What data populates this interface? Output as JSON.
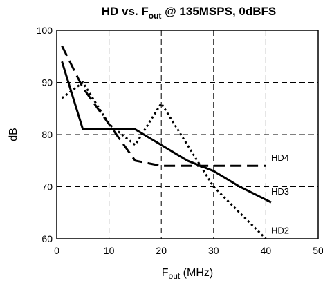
{
  "chart_data": {
    "type": "line",
    "title": {
      "main": "HD vs. F",
      "sub": "out",
      "tail": " @ 135MSPS, 0dBFS"
    },
    "xlabel": {
      "main": "F",
      "sub": "out",
      "tail": " (MHz)"
    },
    "ylabel": "dB",
    "xlim": [
      0,
      50
    ],
    "ylim": [
      60,
      100
    ],
    "xticks": [
      "0",
      "10",
      "20",
      "30",
      "40",
      "50"
    ],
    "yticks": [
      "60",
      "70",
      "80",
      "90",
      "100"
    ],
    "grid": true,
    "series": [
      {
        "name": "HD2",
        "style": "dotted",
        "color": "#000000",
        "points": [
          [
            1,
            87
          ],
          [
            5,
            90
          ],
          [
            10,
            82
          ],
          [
            15,
            78
          ],
          [
            20,
            86
          ],
          [
            25,
            78
          ],
          [
            30,
            70
          ],
          [
            35,
            65
          ],
          [
            40,
            60
          ]
        ]
      },
      {
        "name": "HD3",
        "style": "solid",
        "color": "#000000",
        "points": [
          [
            1,
            94
          ],
          [
            5,
            81
          ],
          [
            10,
            81
          ],
          [
            15,
            81
          ],
          [
            20,
            78
          ],
          [
            25,
            75
          ],
          [
            30,
            73
          ],
          [
            35,
            70
          ],
          [
            41,
            67
          ]
        ]
      },
      {
        "name": "HD4",
        "style": "dashed",
        "color": "#000000",
        "points": [
          [
            1,
            97
          ],
          [
            5,
            89
          ],
          [
            10,
            82
          ],
          [
            15,
            75
          ],
          [
            20,
            74
          ],
          [
            30,
            74
          ],
          [
            40,
            74
          ]
        ]
      }
    ],
    "series_labels": [
      {
        "name": "HD4",
        "x": 41,
        "y": 75
      },
      {
        "name": "HD3",
        "x": 41,
        "y": 68.5
      },
      {
        "name": "HD2",
        "x": 41,
        "y": 61
      }
    ]
  }
}
